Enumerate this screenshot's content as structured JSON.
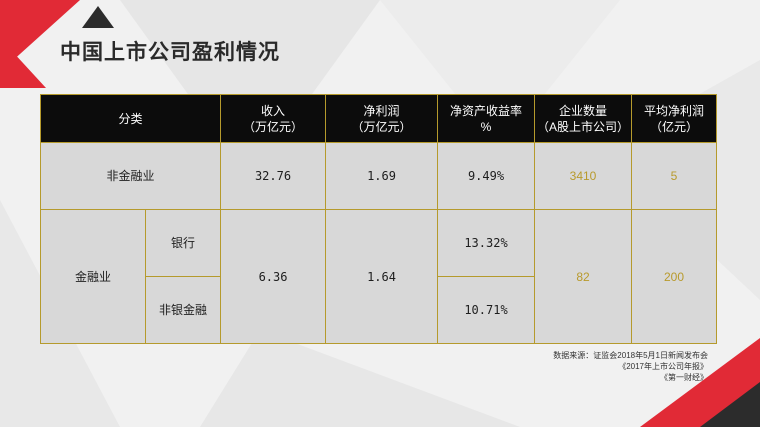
{
  "title": "中国上市公司盈利情况",
  "headers": {
    "category": "分类",
    "revenue_l1": "收入",
    "revenue_l2": "（万亿元）",
    "net_profit_l1": "净利润",
    "net_profit_l2": "（万亿元）",
    "roe_l1": "净资产收益率",
    "roe_l2": "%",
    "count_l1": "企业数量",
    "count_l2": "（A股上市公司）",
    "avg_l1": "平均净利润",
    "avg_l2": "（亿元）"
  },
  "rows": {
    "non_financial": {
      "label": "非金融业",
      "revenue": "32.76",
      "net_profit": "1.69",
      "roe": "9.49%",
      "count": "3410",
      "avg_profit": "5"
    },
    "financial": {
      "label": "金融业",
      "revenue": "6.36",
      "net_profit": "1.64",
      "count": "82",
      "avg_profit": "200",
      "bank": {
        "label": "银行",
        "roe": "13.32%"
      },
      "non_bank": {
        "label": "非银金融",
        "roe": "10.71%"
      }
    }
  },
  "source": {
    "line1": "数据来源：证监会2018年5月1日新闻发布会",
    "line2": "《2017年上市公司年报》",
    "line3": "《第一财经》"
  },
  "colors": {
    "accent_red": "#e12a36",
    "dark_triangle": "#2c2c2c",
    "table_border": "#b59a2c",
    "header_bg": "#0c0c0c"
  }
}
